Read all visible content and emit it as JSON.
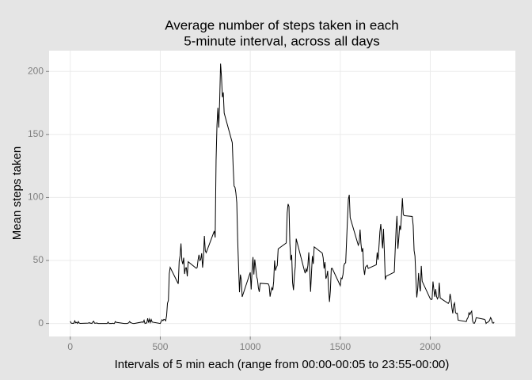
{
  "chart_data": {
    "type": "line",
    "title": [
      "Average number of steps taken in each",
      "5-minute interval, across all days"
    ],
    "x_label": "Intervals of 5 min each (range from 00:00-00:05 to 23:55-00:00)",
    "y_label": "Mean steps taken",
    "color": "#000000",
    "grid": true,
    "xlim": [
      -117.75,
      2472.75
    ],
    "xticks": [
      0,
      500,
      1000,
      1500,
      2000
    ],
    "ylim": [
      -10.3,
      216.5
    ],
    "yticks": [
      0,
      50,
      100,
      150,
      200
    ],
    "x": [
      0,
      5,
      10,
      15,
      20,
      25,
      30,
      35,
      40,
      45,
      50,
      55,
      100,
      105,
      110,
      115,
      120,
      125,
      130,
      135,
      140,
      145,
      150,
      155,
      200,
      205,
      210,
      215,
      220,
      225,
      230,
      235,
      240,
      245,
      250,
      255,
      300,
      305,
      310,
      315,
      320,
      325,
      330,
      335,
      340,
      345,
      350,
      355,
      400,
      405,
      410,
      415,
      420,
      425,
      430,
      435,
      440,
      445,
      450,
      455,
      500,
      505,
      510,
      515,
      520,
      525,
      530,
      535,
      540,
      545,
      550,
      555,
      600,
      605,
      610,
      615,
      620,
      625,
      630,
      635,
      640,
      645,
      650,
      655,
      700,
      705,
      710,
      715,
      720,
      725,
      730,
      735,
      740,
      745,
      750,
      755,
      800,
      805,
      810,
      815,
      820,
      825,
      830,
      835,
      840,
      845,
      850,
      855,
      900,
      905,
      910,
      915,
      920,
      925,
      930,
      935,
      940,
      945,
      950,
      955,
      1000,
      1005,
      1010,
      1015,
      1020,
      1025,
      1030,
      1035,
      1040,
      1045,
      1050,
      1055,
      1100,
      1105,
      1110,
      1115,
      1120,
      1125,
      1130,
      1135,
      1140,
      1145,
      1150,
      1155,
      1200,
      1205,
      1210,
      1215,
      1220,
      1225,
      1230,
      1235,
      1240,
      1245,
      1250,
      1255,
      1300,
      1305,
      1310,
      1315,
      1320,
      1325,
      1330,
      1335,
      1340,
      1345,
      1350,
      1355,
      1400,
      1405,
      1410,
      1415,
      1420,
      1425,
      1430,
      1435,
      1440,
      1445,
      1450,
      1455,
      1500,
      1505,
      1510,
      1515,
      1520,
      1525,
      1530,
      1535,
      1540,
      1545,
      1550,
      1555,
      1600,
      1605,
      1610,
      1615,
      1620,
      1625,
      1630,
      1635,
      1640,
      1645,
      1650,
      1655,
      1700,
      1705,
      1710,
      1715,
      1720,
      1725,
      1730,
      1735,
      1740,
      1745,
      1750,
      1755,
      1800,
      1805,
      1810,
      1815,
      1820,
      1825,
      1830,
      1835,
      1840,
      1845,
      1850,
      1855,
      1900,
      1905,
      1910,
      1915,
      1920,
      1925,
      1930,
      1935,
      1940,
      1945,
      1950,
      1955,
      2000,
      2005,
      2010,
      2015,
      2020,
      2025,
      2030,
      2035,
      2040,
      2045,
      2050,
      2055,
      2100,
      2105,
      2110,
      2115,
      2120,
      2125,
      2130,
      2135,
      2140,
      2145,
      2150,
      2155,
      2200,
      2205,
      2210,
      2215,
      2220,
      2225,
      2230,
      2235,
      2240,
      2245,
      2250,
      2255,
      2300,
      2305,
      2310,
      2315,
      2320,
      2325,
      2330,
      2335,
      2340,
      2345,
      2350,
      2355
    ],
    "values": [
      1.7,
      0.3,
      0.1,
      0.2,
      0.1,
      2.1,
      0.5,
      0.9,
      0,
      1.5,
      0.3,
      0.1,
      0.3,
      0.7,
      0.2,
      0.3,
      0,
      1.1,
      1.8,
      0.2,
      0.2,
      0.4,
      0.3,
      0,
      0,
      0,
      1.1,
      0,
      0,
      0.1,
      0,
      0.2,
      0,
      0,
      1.5,
      0.9,
      0,
      0,
      0,
      0,
      0.2,
      0.6,
      1.6,
      0.6,
      0.5,
      0.1,
      0,
      0,
      1.2,
      0.9,
      2.6,
      0,
      0.3,
      0.4,
      4.1,
      0.7,
      3.5,
      0.8,
      3.1,
      1.1,
      0,
      1.6,
      3,
      2.2,
      3.3,
      3,
      2.1,
      6.1,
      16,
      18.3,
      39.5,
      44.5,
      31.5,
      49.3,
      53.8,
      63.5,
      50,
      47.1,
      52.2,
      39.3,
      44,
      44.2,
      37.4,
      49,
      43.8,
      44.4,
      50.5,
      54.5,
      49.9,
      51,
      55.7,
      44.3,
      52.3,
      69.5,
      57.8,
      56.2,
      73.4,
      68.2,
      129.4,
      157.5,
      171.2,
      155.4,
      177.3,
      206.2,
      195.9,
      179.6,
      183.4,
      167,
      143.5,
      124,
      109.1,
      108.1,
      103.7,
      95.9,
      66.2,
      45.2,
      24.8,
      38.8,
      35,
      21.1,
      40.6,
      27,
      42.4,
      52.7,
      38.9,
      50.8,
      44.3,
      37.4,
      34.7,
      28.3,
      25.1,
      31.9,
      31.4,
      29.7,
      21.3,
      25.5,
      28.4,
      26.5,
      33.4,
      50,
      42,
      44.6,
      46,
      59.2,
      63.9,
      87.7,
      94.8,
      92.8,
      63.4,
      50.2,
      54.5,
      32.4,
      26.5,
      37.7,
      45.1,
      67.3,
      42.3,
      39.9,
      43.3,
      41,
      46.2,
      56.4,
      42.8,
      25.1,
      40,
      53.5,
      47.3,
      60.8,
      55.8,
      52,
      43.6,
      48.7,
      35.5,
      37.5,
      41.8,
      27.5,
      17.1,
      26.1,
      43.6,
      43.8,
      30,
      36.1,
      35.5,
      38.8,
      46,
      47.8,
      48.1,
      65.3,
      82.9,
      98.7,
      102.1,
      84,
      62.1,
      64.1,
      74.5,
      63.2,
      56.9,
      59.8,
      43.9,
      38.6,
      44.7,
      45.5,
      46.2,
      43.7,
      46.6,
      56.3,
      50.7,
      61.2,
      72.7,
      78.9,
      68.9,
      59.7,
      75.1,
      56.5,
      34.8,
      37.5,
      40.7,
      58,
      74.7,
      85.3,
      59.3,
      67.8,
      77.7,
      74.2,
      85.3,
      99.5,
      86.6,
      85.6,
      84.9,
      77.8,
      58,
      53.4,
      36.3,
      20.7,
      27.4,
      40,
      30.2,
      25.5,
      45.7,
      33.5,
      19.6,
      19,
      19.3,
      33.3,
      26.8,
      21.2,
      27.3,
      21.3,
      19.5,
      21.3,
      32.3,
      20.2,
      15.9,
      17.2,
      23.5,
      19.2,
      12.5,
      8,
      14.7,
      16.3,
      8.7,
      7.8,
      8.1,
      2.6,
      1.5,
      3.7,
      4.8,
      8.5,
      7.1,
      8.7,
      9.8,
      2.2,
      0.3,
      0.1,
      1.6,
      4.6,
      3.3,
      2.8,
      0,
      0.8,
      1,
      1.6,
      2.6,
      4.7,
      3.3,
      0.6,
      0.2,
      1.1
    ]
  }
}
